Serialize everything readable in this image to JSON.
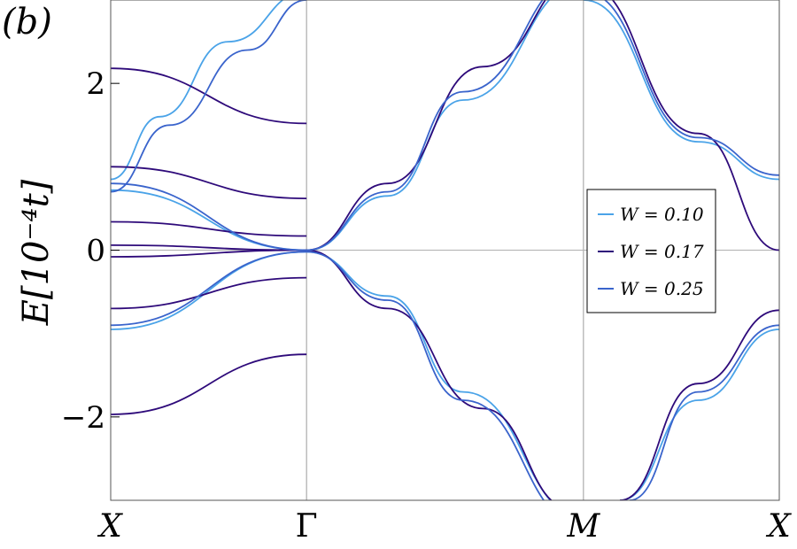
{
  "panel_label": "(b)",
  "chart_data": {
    "type": "line",
    "title": "",
    "ylabel": "E[10⁻⁴t]",
    "xlabel": "",
    "x_ticks": [
      "X",
      "Γ",
      "M",
      "X"
    ],
    "y_ticks": [
      "−2",
      "0",
      "2"
    ],
    "ylim": [
      -3.0,
      3.0
    ],
    "grid": "vertical lines at high-symmetry points, horizontal line at E = 0",
    "legend_position": "right, middle",
    "x_path": [
      {
        "label": "X",
        "k": 0.0
      },
      {
        "label": "Γ",
        "k": 1.0
      },
      {
        "label": "M",
        "k": 2.414
      },
      {
        "label": "X",
        "k": 3.414
      }
    ],
    "series": [
      {
        "name": "W = 0.10",
        "color": "#4aa3e8",
        "bands": [
          {
            "x": [
              0,
              1.0,
              1.414,
              1.8,
              2.414
            ],
            "y": [
              0.72,
              0.0,
              0.65,
              1.8,
              3.2
            ]
          },
          {
            "x": [
              0,
              1.0,
              1.414,
              1.8,
              2.414
            ],
            "y": [
              -0.95,
              -0.02,
              -0.55,
              -1.7,
              -3.2
            ]
          },
          {
            "x": [
              0,
              0.25,
              0.6,
              1.0
            ],
            "y": [
              0.85,
              1.6,
              2.5,
              3.1
            ]
          },
          {
            "x": [
              2.414,
              3.0,
              3.414
            ],
            "y": [
              3.0,
              1.3,
              0.85
            ]
          },
          {
            "x": [
              2.6,
              3.0,
              3.414
            ],
            "y": [
              -3.0,
              -1.8,
              -0.95
            ]
          }
        ]
      },
      {
        "name": "W = 0.17",
        "color": "#2e0a7a",
        "bands": [
          {
            "x": [
              0,
              1.0
            ],
            "y": [
              2.18,
              1.52
            ]
          },
          {
            "x": [
              0,
              1.0
            ],
            "y": [
              1.0,
              0.62
            ]
          },
          {
            "x": [
              0,
              1.0
            ],
            "y": [
              0.34,
              0.17
            ]
          },
          {
            "x": [
              0,
              1.0
            ],
            "y": [
              0.06,
              0.0
            ]
          },
          {
            "x": [
              0,
              1.0
            ],
            "y": [
              -0.08,
              0.0
            ]
          },
          {
            "x": [
              0,
              1.0
            ],
            "y": [
              -0.7,
              -0.33
            ]
          },
          {
            "x": [
              0,
              1.0
            ],
            "y": [
              -1.97,
              -1.25
            ]
          },
          {
            "x": [
              1.0,
              1.414,
              1.9,
              2.414
            ],
            "y": [
              0.0,
              0.8,
              2.2,
              3.3
            ]
          },
          {
            "x": [
              1.0,
              1.414,
              1.9,
              2.35
            ],
            "y": [
              0.0,
              -0.7,
              -1.9,
              -3.1
            ]
          },
          {
            "x": [
              2.414,
              3.0,
              3.414
            ],
            "y": [
              3.2,
              1.4,
              0.0
            ]
          },
          {
            "x": [
              2.6,
              3.0,
              3.414
            ],
            "y": [
              -3.0,
              -1.6,
              -0.72
            ]
          }
        ]
      },
      {
        "name": "W = 0.25",
        "color": "#3a64cc",
        "bands": [
          {
            "x": [
              0,
              1.0,
              1.414,
              1.8,
              2.414
            ],
            "y": [
              0.8,
              0.0,
              0.7,
              1.9,
              3.3
            ]
          },
          {
            "x": [
              0,
              1.0,
              1.414,
              1.8,
              2.414
            ],
            "y": [
              -0.9,
              -0.02,
              -0.6,
              -1.8,
              -3.3
            ]
          },
          {
            "x": [
              0,
              0.3,
              0.7,
              1.0
            ],
            "y": [
              0.7,
              1.5,
              2.4,
              3.0
            ]
          },
          {
            "x": [
              2.414,
              3.0,
              3.414
            ],
            "y": [
              3.1,
              1.35,
              0.9
            ]
          },
          {
            "x": [
              2.65,
              3.0,
              3.414
            ],
            "y": [
              -3.0,
              -1.7,
              -0.9
            ]
          }
        ]
      }
    ]
  }
}
